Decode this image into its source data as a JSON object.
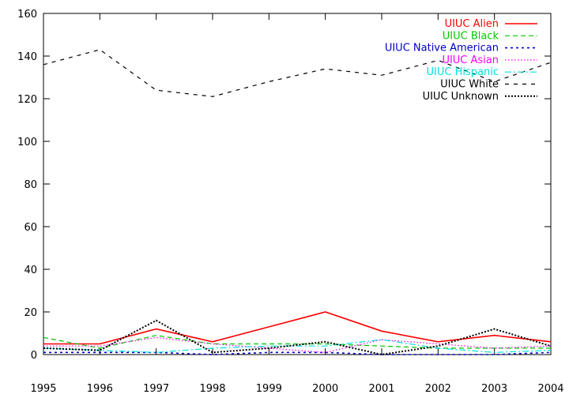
{
  "chart_data": {
    "type": "line",
    "title": "",
    "xlabel": "",
    "ylabel": "",
    "x": [
      1995,
      1996,
      1997,
      1998,
      1999,
      2000,
      2001,
      2002,
      2003,
      2004
    ],
    "xlim": [
      1995,
      2004
    ],
    "ylim": [
      0,
      160
    ],
    "x_ticks": [
      "1995",
      "1996",
      "1997",
      "1998",
      "1999",
      "2000",
      "2001",
      "2002",
      "2003",
      "2004"
    ],
    "y_ticks": [
      "0",
      "20",
      "40",
      "60",
      "80",
      "100",
      "120",
      "140",
      "160"
    ],
    "grid": false,
    "legend_position": "top-right",
    "series": [
      {
        "name": "UIUC Alien",
        "color": "#ff0000",
        "dash": "solid",
        "values": [
          5,
          5,
          12,
          6,
          13,
          20,
          11,
          6,
          9,
          6
        ]
      },
      {
        "name": "UIUC Black",
        "color": "#00c800",
        "dash": "dashed",
        "values": [
          8,
          3,
          9,
          5,
          5,
          5,
          4,
          3,
          3,
          3
        ]
      },
      {
        "name": "UIUC Native American",
        "color": "#0000c8",
        "dash": "dotted",
        "values": [
          1,
          1,
          1,
          0,
          1,
          1,
          0,
          0,
          0,
          1
        ]
      },
      {
        "name": "UIUC Asian",
        "color": "#ff00ff",
        "dash": "fine-dotted",
        "values": [
          4,
          4,
          8,
          5,
          3,
          1,
          7,
          5,
          3,
          4
        ]
      },
      {
        "name": "UIUC Hispanic",
        "color": "#00e0e0",
        "dash": "dash-dot",
        "values": [
          3,
          2,
          1,
          3,
          4,
          4,
          7,
          3,
          1,
          2
        ]
      },
      {
        "name": "UIUC White",
        "color": "#000000",
        "dash": "long-dash",
        "values": [
          136,
          143,
          124,
          121,
          128,
          134,
          131,
          138,
          128,
          137
        ]
      },
      {
        "name": "UIUC Unknown",
        "color": "#000000",
        "dash": "dense-dotted",
        "values": [
          3,
          2,
          16,
          1,
          3,
          6,
          0,
          4,
          12,
          4
        ]
      }
    ]
  }
}
